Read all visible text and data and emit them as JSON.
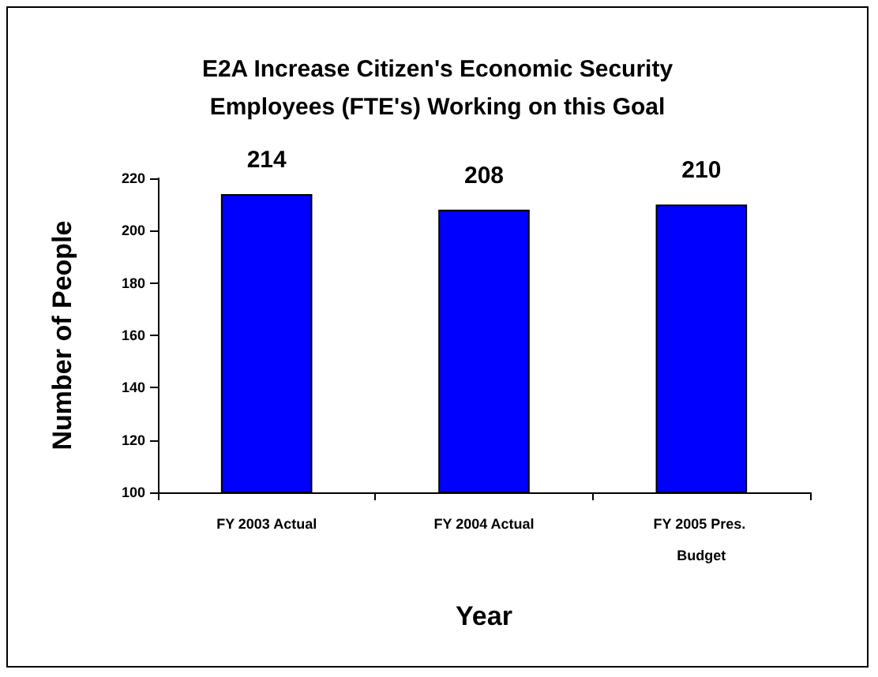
{
  "chart_data": {
    "type": "bar",
    "title": "E2A Increase Citizen's Economic Security\nEmployees (FTE's) Working on this Goal",
    "xlabel": "Year",
    "ylabel": "Number of People",
    "categories": [
      "FY 2003 Actual",
      "FY 2004 Actual",
      "FY 2005 Pres. Budget"
    ],
    "values": [
      214,
      208,
      210
    ],
    "color": "#0000ff",
    "ylim": [
      100,
      220
    ],
    "yticks": [
      100,
      120,
      140,
      160,
      180,
      200,
      220
    ],
    "grid": false,
    "data_labels": true
  }
}
